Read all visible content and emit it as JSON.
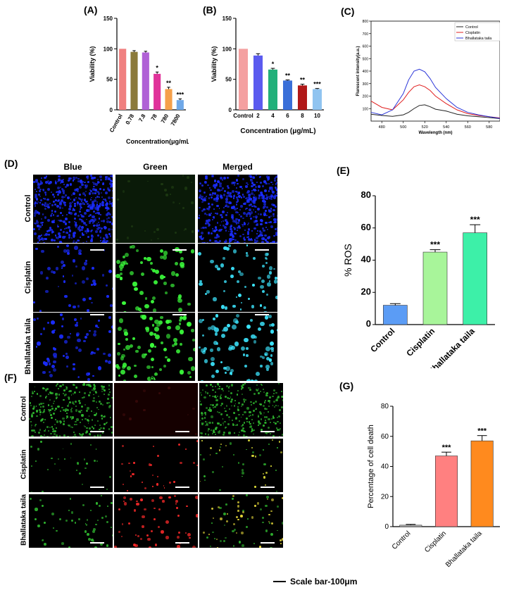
{
  "panels": {
    "a": "(A)",
    "b": "(B)",
    "c": "(C)",
    "d": "(D)",
    "e": "(E)",
    "f": "(F)",
    "g": "(G)"
  },
  "micro_d": {
    "columns": [
      "Blue",
      "Green",
      "Merged"
    ],
    "rows": [
      "Control",
      "Cisplatin",
      "Bhallataka taila"
    ]
  },
  "micro_f": {
    "columns": [
      "Green",
      "Red",
      "Merged"
    ],
    "rows": [
      "Control",
      "Cisplatin",
      "Bhallataka taila"
    ]
  },
  "scale_note": "Scale bar-100μm",
  "colors": {
    "blue_stain": "#1a2cff",
    "green_stain": "#3cff3c",
    "cyan_stain": "#3ce6ff",
    "red_stain": "#ff2a2a"
  },
  "chart_data": [
    {
      "id": "A",
      "type": "bar",
      "categories": [
        "Control",
        "0.78",
        "7.8",
        "78",
        "780",
        "7800"
      ],
      "values": [
        100,
        95,
        94,
        59,
        34,
        16
      ],
      "errors": [
        0,
        2,
        2,
        3,
        3,
        2
      ],
      "annotations": [
        "",
        "",
        "",
        "*",
        "**",
        "***"
      ],
      "colors": [
        "#f08080",
        "#8b7a3a",
        "#b061d6",
        "#e0339a",
        "#f5a04a",
        "#6fa8e8"
      ],
      "ylabel": "Viability (%)",
      "xlabel": "Concentration(μg/mL)",
      "ylim": [
        0,
        150
      ],
      "yticks": [
        0,
        50,
        100,
        150
      ]
    },
    {
      "id": "B",
      "type": "bar",
      "categories": [
        "Control",
        "2",
        "4",
        "6",
        "8",
        "10"
      ],
      "values": [
        100,
        89,
        66,
        48,
        40,
        34
      ],
      "errors": [
        0,
        3,
        2,
        1,
        2,
        1
      ],
      "annotations": [
        "",
        "",
        "*",
        "**",
        "**",
        "***"
      ],
      "colors": [
        "#f4a0a0",
        "#5b5bef",
        "#22b07a",
        "#3a6fd8",
        "#b01818",
        "#90c4f0"
      ],
      "ylabel": "Viability (%)",
      "xlabel": "Concentration (μg/mL)",
      "ylim": [
        0,
        150
      ],
      "yticks": [
        0,
        50,
        100,
        150
      ]
    },
    {
      "id": "C",
      "type": "line",
      "x": [
        470,
        480,
        490,
        500,
        505,
        510,
        515,
        520,
        525,
        530,
        540,
        550,
        560,
        570,
        580,
        590
      ],
      "series": [
        {
          "name": "Control",
          "color": "#222222",
          "values": [
            55,
            45,
            38,
            50,
            70,
            100,
            125,
            130,
            115,
            95,
            80,
            55,
            42,
            35,
            28,
            20
          ]
        },
        {
          "name": "Cisplatin",
          "color": "#e02020",
          "values": [
            160,
            110,
            90,
            170,
            230,
            275,
            290,
            275,
            245,
            200,
            140,
            90,
            60,
            45,
            35,
            25
          ]
        },
        {
          "name": "Bhallataka taila",
          "color": "#2a35d8",
          "values": [
            70,
            50,
            90,
            220,
            330,
            400,
            415,
            395,
            340,
            270,
            180,
            110,
            70,
            50,
            35,
            22
          ]
        }
      ],
      "ylabel": "Flurescent intensity(a.u.)",
      "xlabel": "Wavelength (nm)",
      "xlim": [
        470,
        590
      ],
      "ylim": [
        0,
        800
      ],
      "xticks": [
        480,
        500,
        520,
        540,
        560,
        580
      ],
      "yticks": [
        100,
        200,
        300,
        400,
        500,
        600,
        700,
        800
      ],
      "legend": "top-right"
    },
    {
      "id": "E",
      "type": "bar",
      "categories": [
        "Control",
        "Cisplatin",
        "Bhallataka taila"
      ],
      "values": [
        12,
        45,
        57
      ],
      "errors": [
        1,
        1.5,
        5
      ],
      "annotations": [
        "",
        "***",
        "***"
      ],
      "colors": [
        "#5b9cf5",
        "#a8f59a",
        "#3df0a8"
      ],
      "ylabel": "% ROS",
      "ylim": [
        0,
        80
      ],
      "yticks": [
        0,
        20,
        40,
        60,
        80
      ]
    },
    {
      "id": "G",
      "type": "bar",
      "categories": [
        "Control",
        "Cisplatin",
        "Bhallataka taila"
      ],
      "values": [
        1,
        47,
        57
      ],
      "errors": [
        0.5,
        2.5,
        3.5
      ],
      "annotations": [
        "",
        "***",
        "***"
      ],
      "colors": [
        "#bbbbbb",
        "#ff8080",
        "#ff8a1e"
      ],
      "ylabel": "Percentage of cell death",
      "ylim": [
        0,
        80
      ],
      "yticks": [
        0,
        20,
        40,
        60,
        80
      ]
    }
  ]
}
